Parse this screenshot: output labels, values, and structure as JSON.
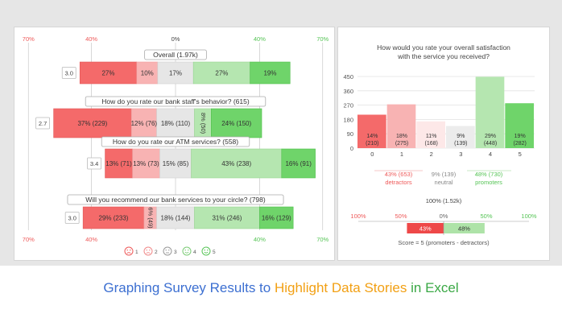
{
  "caption": {
    "part1": "Graphing Survey Results to ",
    "part2": "Highlight Data Stories",
    "part3": " in Excel",
    "color1": "#3c6fd1",
    "color2": "#f2a014",
    "color3": "#3aa845"
  },
  "colors": {
    "red_dark": "#f46a6a",
    "red_light": "#f8b3b3",
    "neutral": "#e6e6e6",
    "green_light": "#b5e6b0",
    "green_dark": "#6fd46a",
    "axis_red": "#ee5a5a",
    "axis_green": "#55c455",
    "axis_grey": "#444444"
  },
  "chart_data": [
    {
      "type": "bar",
      "subtype": "diverging-stacked",
      "axis_labels_top": [
        "70%",
        "40%",
        "0%",
        "40%",
        "70%"
      ],
      "axis_labels_bottom": [
        "70%",
        "40%",
        "",
        "40%",
        "70%"
      ],
      "legend": [
        "1",
        "2",
        "3",
        "4",
        "5"
      ],
      "legend_icons": [
        "very-sad-face-icon",
        "sad-face-icon",
        "neutral-face-icon",
        "happy-face-icon",
        "very-happy-face-icon"
      ],
      "series": [
        {
          "title": "Overall (1.97k)",
          "score": "3.0",
          "values": [
            27,
            10,
            17,
            27,
            19
          ],
          "labels": [
            "27%",
            "10%",
            "17%",
            "27%",
            "19%"
          ]
        },
        {
          "title": "How do you rate our bank staff's behavior? (615)",
          "score": "2.7",
          "values": [
            37,
            12,
            18,
            8,
            24
          ],
          "labels": [
            "37% (229)",
            "12% (76)",
            "18% (110)",
            "8% (50)",
            "24% (150)"
          ]
        },
        {
          "title": "How do you rate our ATM services? (558)",
          "score": "3.4",
          "values": [
            13,
            13,
            15,
            43,
            16
          ],
          "labels": [
            "13% (71)",
            "13% (73)",
            "15% (85)",
            "43% (238)",
            "16% (91)"
          ]
        },
        {
          "title": "Will you recommend our bank services to your circle? (798)",
          "score": "3.0",
          "values": [
            29,
            6,
            18,
            31,
            16
          ],
          "labels": [
            "29% (233)",
            "6% (49)",
            "18% (144)",
            "31% (246)",
            "16% (129)"
          ]
        }
      ]
    },
    {
      "type": "bar",
      "title": "How would you rate your overall satisfaction with the service you received?",
      "categories": [
        "0",
        "1",
        "2",
        "3",
        "4",
        "5"
      ],
      "values": [
        210,
        275,
        168,
        139,
        448,
        282
      ],
      "labels": [
        "14%\n(210)",
        "18%\n(275)",
        "11%\n(168)",
        "9%\n(139)",
        "29%\n(448)",
        "19%\n(282)"
      ],
      "yticks": [
        "0",
        "90",
        "180",
        "270",
        "360",
        "450"
      ],
      "ylim": [
        0,
        450
      ],
      "groups": [
        {
          "value": "43% (653)",
          "name": "detractors"
        },
        {
          "value": "9% (139)",
          "name": "neutral"
        },
        {
          "value": "48% (730)",
          "name": "promoters"
        }
      ],
      "total": "100% (1.52k)",
      "nps_axis": [
        "100%",
        "50%",
        "0%",
        "50%",
        "100%"
      ],
      "nps_values": [
        43,
        48
      ],
      "nps_labels": [
        "43%",
        "48%"
      ],
      "score_text": "Score = 5 (promoters - detractors)"
    }
  ]
}
